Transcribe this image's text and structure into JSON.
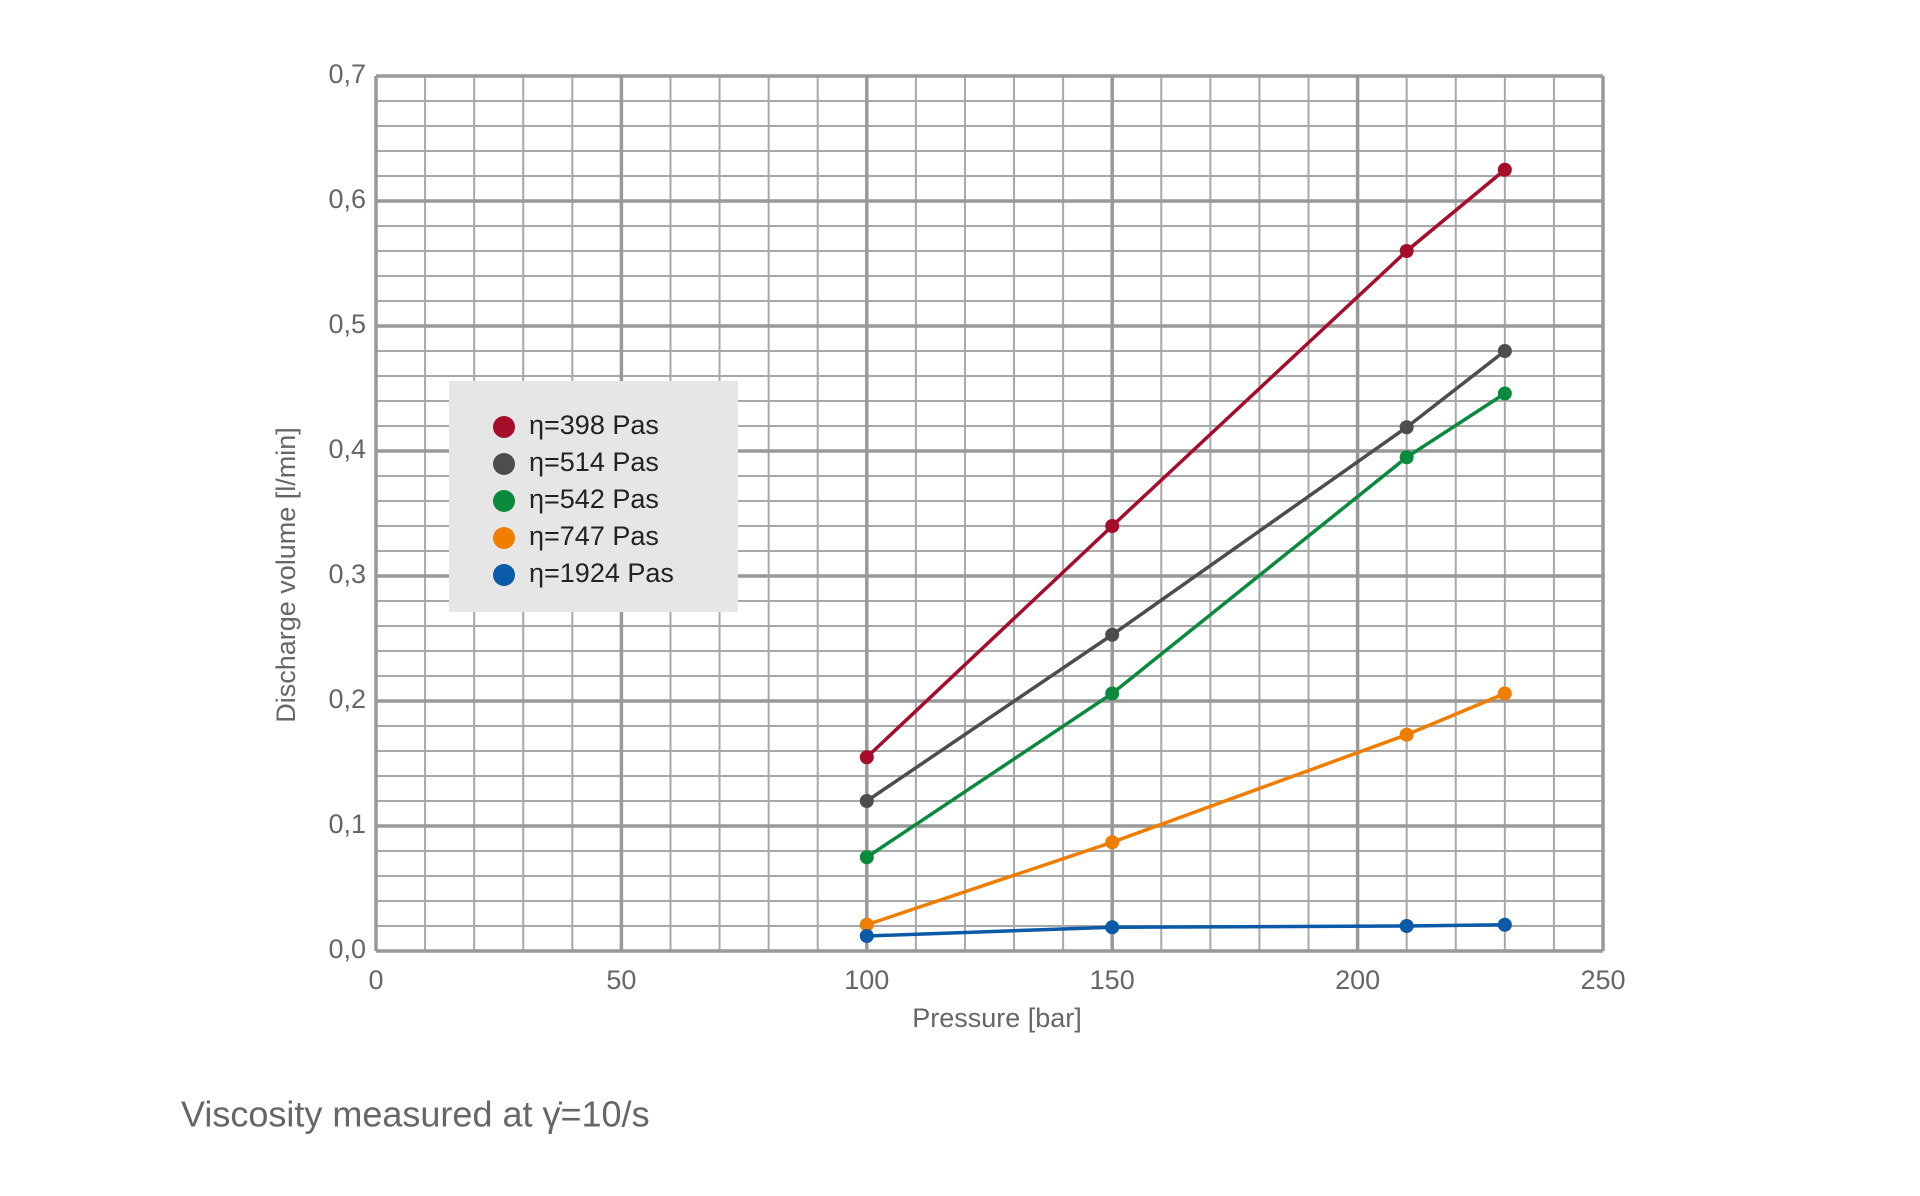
{
  "chart_data": {
    "type": "line",
    "x_label": "Pressure [bar]",
    "y_label": "Discharge volume [l/min]",
    "note": "Viscosity measured at γ̇=10/s",
    "x": [
      100,
      150,
      210,
      230
    ],
    "series": [
      {
        "name": "η=398 Pas",
        "color": "#a50d2a",
        "values": [
          0.155,
          0.34,
          0.56,
          0.625
        ]
      },
      {
        "name": "η=514 Pas",
        "color": "#4d4d4d",
        "values": [
          0.12,
          0.253,
          0.419,
          0.48
        ]
      },
      {
        "name": "η=542 Pas",
        "color": "#0a8a3c",
        "values": [
          0.075,
          0.206,
          0.395,
          0.446
        ]
      },
      {
        "name": "η=747 Pas",
        "color": "#ef7d00",
        "values": [
          0.021,
          0.087,
          0.173,
          0.206
        ]
      },
      {
        "name": "η=1924 Pas",
        "color": "#0b5aa8",
        "values": [
          0.012,
          0.019,
          0.02,
          0.021
        ]
      }
    ],
    "xlim": [
      0,
      250
    ],
    "ylim": [
      0,
      0.7
    ],
    "xticks": [
      0,
      50,
      100,
      150,
      200,
      250
    ],
    "yticks": [
      {
        "value": 0,
        "label": "0,0"
      },
      {
        "value": 0.1,
        "label": "0,1"
      },
      {
        "value": 0.2,
        "label": "0,2"
      },
      {
        "value": 0.3,
        "label": "0,3"
      },
      {
        "value": 0.4,
        "label": "0,4"
      },
      {
        "value": 0.5,
        "label": "0,5"
      },
      {
        "value": 0.6,
        "label": "0,6"
      },
      {
        "value": 0.7,
        "label": "0,7"
      }
    ],
    "x_minor_ticks": [
      10,
      20,
      30,
      40,
      60,
      70,
      80,
      90,
      110,
      120,
      130,
      140,
      160,
      170,
      180,
      190,
      210,
      220,
      230,
      240
    ],
    "y_minor_ticks": [
      0.02,
      0.04,
      0.06,
      0.08,
      0.12,
      0.14,
      0.16,
      0.18,
      0.22,
      0.24,
      0.26,
      0.28,
      0.32,
      0.34,
      0.36,
      0.38,
      0.42,
      0.44,
      0.46,
      0.48,
      0.52,
      0.54,
      0.56,
      0.58,
      0.62,
      0.64,
      0.66,
      0.68
    ],
    "grid": true
  }
}
